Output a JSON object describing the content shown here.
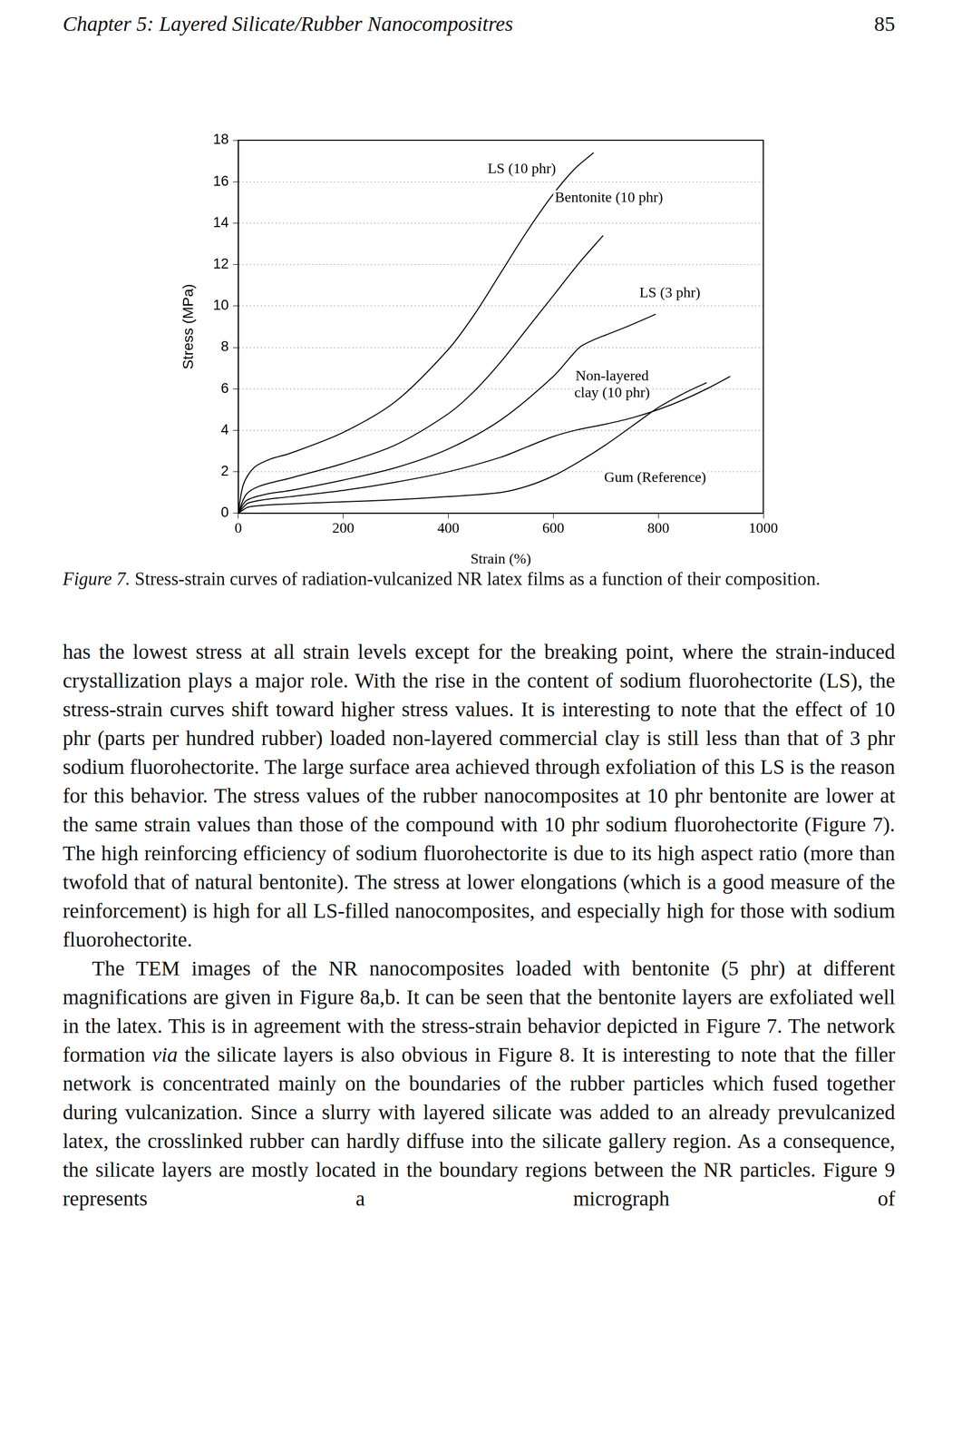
{
  "header": {
    "title": "Chapter 5: Layered Silicate/Rubber Nanocompositres",
    "page": "85"
  },
  "chart_data": {
    "type": "line",
    "x_label": "Strain (%)",
    "y_label": "Stress (MPa)",
    "xlim": [
      0,
      1000
    ],
    "xticks": [
      0,
      200,
      400,
      600,
      800,
      1000
    ],
    "ylim": [
      0,
      18
    ],
    "yticks": [
      0,
      2,
      4,
      6,
      8,
      10,
      12,
      14,
      16,
      18
    ],
    "grid": true,
    "legend": false,
    "marker": "none",
    "line_style": "solid",
    "series": [
      {
        "name": "LS (10 phr)",
        "color": "#000000",
        "x": [
          0,
          10,
          30,
          60,
          100,
          200,
          300,
          400,
          450,
          500,
          550,
          600,
          640,
          677
        ],
        "values": [
          0,
          1.4,
          2.2,
          2.6,
          2.9,
          3.9,
          5.4,
          7.9,
          9.6,
          11.6,
          13.6,
          15.4,
          16.6,
          17.4
        ]
      },
      {
        "name": "Bentonite (10 phr)",
        "color": "#000000",
        "x": [
          0,
          15,
          40,
          100,
          200,
          300,
          400,
          450,
          500,
          550,
          600,
          650,
          695
        ],
        "values": [
          0,
          0.9,
          1.3,
          1.7,
          2.4,
          3.3,
          4.8,
          5.9,
          7.3,
          8.9,
          10.5,
          12.1,
          13.4
        ]
      },
      {
        "name": "LS (3 phr)",
        "color": "#000000",
        "x": [
          0,
          15,
          50,
          100,
          200,
          300,
          400,
          500,
          600,
          650,
          680,
          700,
          740,
          795
        ],
        "values": [
          0,
          0.6,
          0.9,
          1.1,
          1.6,
          2.2,
          3.1,
          4.5,
          6.6,
          8.0,
          8.4,
          8.6,
          9.0,
          9.6
        ]
      },
      {
        "name": "Non-layered clay (10 phr)",
        "color": "#000000",
        "x": [
          0,
          20,
          100,
          200,
          300,
          400,
          500,
          550,
          600,
          642,
          700,
          750,
          800,
          850,
          900,
          937
        ],
        "values": [
          0,
          0.5,
          0.8,
          1.1,
          1.5,
          2.0,
          2.7,
          3.2,
          3.7,
          4.0,
          4.3,
          4.6,
          5.0,
          5.5,
          6.1,
          6.6
        ]
      },
      {
        "name": "Gum (Reference)",
        "color": "#000000",
        "x": [
          0,
          20,
          100,
          200,
          300,
          400,
          500,
          550,
          600,
          650,
          700,
          750,
          800,
          850,
          892
        ],
        "values": [
          0,
          0.3,
          0.45,
          0.55,
          0.65,
          0.8,
          1.0,
          1.3,
          1.8,
          2.5,
          3.3,
          4.2,
          5.1,
          5.8,
          6.3
        ]
      }
    ]
  },
  "caption": {
    "label": "Figure 7.",
    "text": "Stress-strain curves of radiation-vulcanized NR latex films as a function of their composition."
  },
  "body": [
    {
      "indent": false,
      "runs": [
        {
          "text": "has the lowest stress at all strain levels except for the breaking point, where the strain-induced crystallization plays a major role. With the rise in the content of sodium fluorohectorite (LS), the stress-strain curves shift toward higher stress values. It is interesting to note that the effect of 10 phr (parts per hundred rubber) loaded non-layered commercial clay is still less than that of 3 phr sodium fluorohectorite. The large surface area achieved through exfoliation of this LS is the reason for this behavior. The stress values of the rubber nanocomposites at 10 phr bentonite are lower at the same strain values than those of the compound with 10 phr sodium fluorohectorite (Figure 7). The high reinforcing efficiency of sodium fluorohectorite is due to its high aspect ratio (more than twofold that of natural bentonite). The stress at lower elongations (which is a good measure of the reinforcement) is high for all LS-filled nanocomposites, and especially high for those with sodium fluorohectorite."
        }
      ]
    },
    {
      "indent": true,
      "runs": [
        {
          "text": "The TEM images of the NR nanocomposites loaded with bentonite (5 phr) at different magnifications are given in Figure 8a,b. It can be seen that the bentonite layers are exfoliated well in the latex. This is in agreement with the stress-strain behavior depicted in Figure 7. The network formation "
        },
        {
          "text": "via",
          "italic": true
        },
        {
          "text": " the silicate layers is also obvious in Figure 8. It is interesting to note that the filler network is concentrated mainly on the boundaries of the rubber particles which fused together during vulcanization. Since a slurry with layered silicate was added to an already prevulcanized latex, the crosslinked rubber can hardly diffuse into the silicate gallery region. As a consequence, the silicate layers are mostly located in the boundary regions between the NR particles. Figure 9 represents a micrograph of"
        }
      ]
    }
  ]
}
